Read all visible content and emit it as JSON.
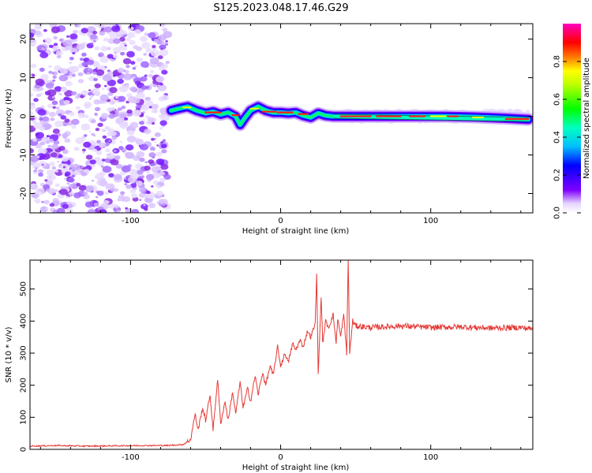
{
  "title": "S125.2023.048.17.46.G29",
  "chart_data": [
    {
      "type": "heatmap",
      "title": "S125.2023.048.17.46.G29",
      "xlabel": "Height of straight line (km)",
      "ylabel": "Frequency (Hz)",
      "xlim": [
        -167,
        168
      ],
      "ylim": [
        -25,
        24
      ],
      "xticks": [
        -100,
        0,
        100
      ],
      "yticks": [
        -20,
        -10,
        0,
        10,
        20
      ],
      "colorbar": {
        "label": "Normalized spectral amplitude",
        "range": [
          0,
          1
        ],
        "ticks": [
          0.0,
          0.2,
          0.4,
          0.6,
          0.8
        ],
        "colormap": [
          "#ffffff",
          "#7f00ff",
          "#0000ff",
          "#00bfff",
          "#00ffbf",
          "#00ff00",
          "#bfff00",
          "#ffff00",
          "#ff8000",
          "#ff0000",
          "#ff00bf"
        ]
      },
      "noise_region": {
        "x": [
          -167,
          -75
        ],
        "color": "#8a2be2"
      },
      "ridge": {
        "x": [
          -73,
          -68,
          -62,
          -56,
          -50,
          -45,
          -40,
          -35,
          -30,
          -27,
          -24,
          -20,
          -15,
          -10,
          -5,
          0,
          5,
          10,
          15,
          20,
          25,
          30,
          35,
          50,
          70,
          90,
          110,
          130,
          150,
          165
        ],
        "y": [
          1.5,
          2.0,
          2.5,
          1.5,
          0.8,
          1.2,
          0.5,
          1.0,
          0.0,
          -2.2,
          -0.5,
          1.5,
          2.5,
          1.5,
          1.0,
          1.0,
          0.8,
          1.0,
          0.2,
          -0.3,
          0.8,
          0.2,
          0.0,
          0.0,
          0.0,
          0.0,
          0.0,
          -0.2,
          -0.5,
          -0.8
        ]
      }
    },
    {
      "type": "line",
      "xlabel": "Height of straight line (km)",
      "ylabel": "SNR (10 * v/v)",
      "xlim": [
        -167,
        168
      ],
      "ylim": [
        0,
        590
      ],
      "xticks": [
        -100,
        0,
        100
      ],
      "yticks": [
        0,
        100,
        200,
        300,
        400,
        500
      ],
      "color": "#e53935",
      "series": [
        {
          "x": [
            -167,
            -150,
            -130,
            -110,
            -90,
            -75,
            -65,
            -60,
            -57,
            -55,
            -52,
            -50,
            -47,
            -45,
            -42,
            -40,
            -37,
            -35,
            -32,
            -30,
            -27,
            -25,
            -22,
            -20,
            -17,
            -15,
            -12,
            -10,
            -7,
            -5,
            -2,
            0,
            3,
            5,
            8,
            10,
            13,
            15,
            18,
            20,
            23,
            24,
            25,
            27,
            28,
            30,
            32,
            35,
            37,
            38,
            40,
            42,
            44,
            45,
            46,
            48,
            50,
            60,
            80,
            100,
            120,
            140,
            160,
            168
          ],
          "y": [
            10,
            12,
            10,
            11,
            12,
            12,
            15,
            30,
            110,
            60,
            130,
            90,
            170,
            60,
            220,
            80,
            150,
            90,
            180,
            110,
            210,
            130,
            190,
            150,
            230,
            170,
            240,
            200,
            260,
            230,
            320,
            260,
            300,
            270,
            330,
            310,
            340,
            320,
            370,
            350,
            390,
            555,
            230,
            480,
            330,
            400,
            380,
            420,
            330,
            410,
            350,
            420,
            300,
            590,
            300,
            400,
            385,
            380,
            385,
            380,
            382,
            378,
            380,
            375
          ]
        }
      ]
    }
  ]
}
